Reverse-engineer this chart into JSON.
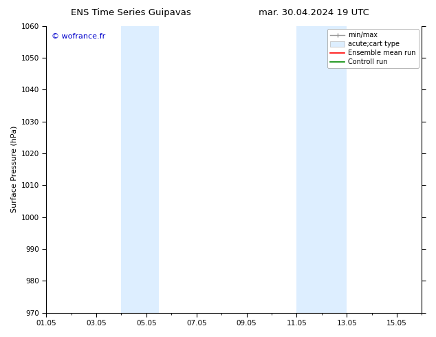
{
  "title_left": "ENS Time Series Guipavas",
  "title_right": "mar. 30.04.2024 19 UTC",
  "ylabel": "Surface Pressure (hPa)",
  "ylim": [
    970,
    1060
  ],
  "yticks": [
    970,
    980,
    990,
    1000,
    1010,
    1020,
    1030,
    1040,
    1050,
    1060
  ],
  "xlim_start": 1.0,
  "xlim_end": 16.0,
  "xtick_positions": [
    1,
    3,
    5,
    7,
    9,
    11,
    13,
    15
  ],
  "xtick_labels": [
    "01.05",
    "03.05",
    "05.05",
    "07.05",
    "09.05",
    "11.05",
    "13.05",
    "15.05"
  ],
  "shaded_bands": [
    {
      "x_start": 4.0,
      "x_end": 5.5
    },
    {
      "x_start": 11.0,
      "x_end": 13.0
    }
  ],
  "shaded_color": "#ddeeff",
  "watermark_text": "© wofrance.fr",
  "watermark_color": "#0000cc",
  "legend_labels": [
    "min/max",
    "acute;cart type",
    "Ensemble mean run",
    "Controll run"
  ],
  "legend_colors": [
    "#aaaaaa",
    "#ddeeff",
    "#ff0000",
    "#008800"
  ],
  "bg_color": "#ffffff",
  "title_fontsize": 9.5,
  "tick_fontsize": 7.5,
  "ylabel_fontsize": 8
}
